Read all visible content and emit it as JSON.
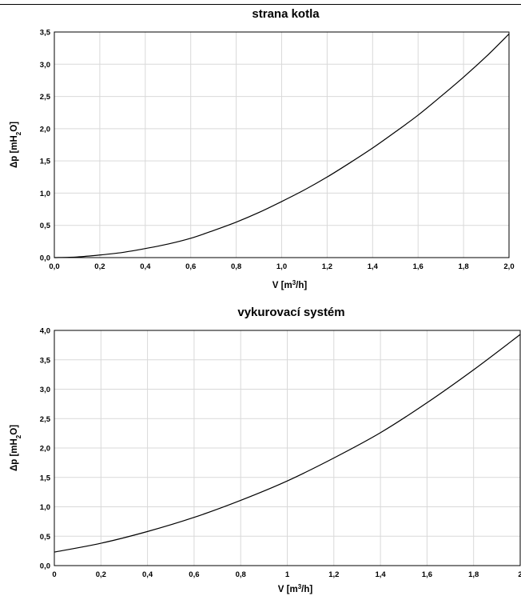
{
  "chart_data": [
    {
      "type": "line",
      "title": "strana kotla",
      "xlabel_main": "V [m",
      "xlabel_sup": "3",
      "xlabel_end": "/h]",
      "ylabel_main": "Δp [mH",
      "ylabel_sub": "2",
      "ylabel_end": "O]",
      "xlim": [
        0,
        2.0
      ],
      "ylim": [
        0,
        3.5
      ],
      "x_ticks": [
        "0,0",
        "0,2",
        "0,4",
        "0,6",
        "0,8",
        "1,0",
        "1,2",
        "1,4",
        "1,6",
        "1,8",
        "2,0"
      ],
      "y_ticks": [
        "0,0",
        "0,5",
        "1,0",
        "1,5",
        "2,0",
        "2,5",
        "3,0",
        "3,5"
      ],
      "grid": true,
      "series": [
        {
          "x": [
            0,
            0.1,
            0.2,
            0.3,
            0.4,
            0.5,
            0.6,
            0.7,
            0.8,
            0.9,
            1.0,
            1.1,
            1.2,
            1.3,
            1.4,
            1.5,
            1.6,
            1.7,
            1.8,
            1.9,
            2.0
          ],
          "y": [
            0,
            0.01,
            0.04,
            0.08,
            0.14,
            0.21,
            0.3,
            0.42,
            0.55,
            0.7,
            0.87,
            1.05,
            1.25,
            1.47,
            1.7,
            1.95,
            2.21,
            2.5,
            2.8,
            3.12,
            3.47
          ]
        }
      ]
    },
    {
      "type": "line",
      "title": "vykurovací systém",
      "xlabel_main": "V [m",
      "xlabel_sup": "3",
      "xlabel_end": "/h]",
      "ylabel_main": "Δp [mH",
      "ylabel_sub": "2",
      "ylabel_end": "O]",
      "xlim": [
        0,
        2.0
      ],
      "ylim": [
        0,
        4.0
      ],
      "x_ticks": [
        "0",
        "0,2",
        "0,4",
        "0,6",
        "0,8",
        "1",
        "1,2",
        "1,4",
        "1,6",
        "1,8",
        "2"
      ],
      "y_ticks": [
        "0,0",
        "0,5",
        "1,0",
        "1,5",
        "2,0",
        "2,5",
        "3,0",
        "3,5",
        "4,0"
      ],
      "grid": true,
      "series": [
        {
          "x": [
            0,
            0.2,
            0.4,
            0.6,
            0.8,
            1.0,
            1.2,
            1.4,
            1.6,
            1.8,
            2.0
          ],
          "y": [
            0.23,
            0.38,
            0.58,
            0.82,
            1.11,
            1.44,
            1.83,
            2.26,
            2.77,
            3.33,
            3.93
          ]
        }
      ]
    }
  ]
}
